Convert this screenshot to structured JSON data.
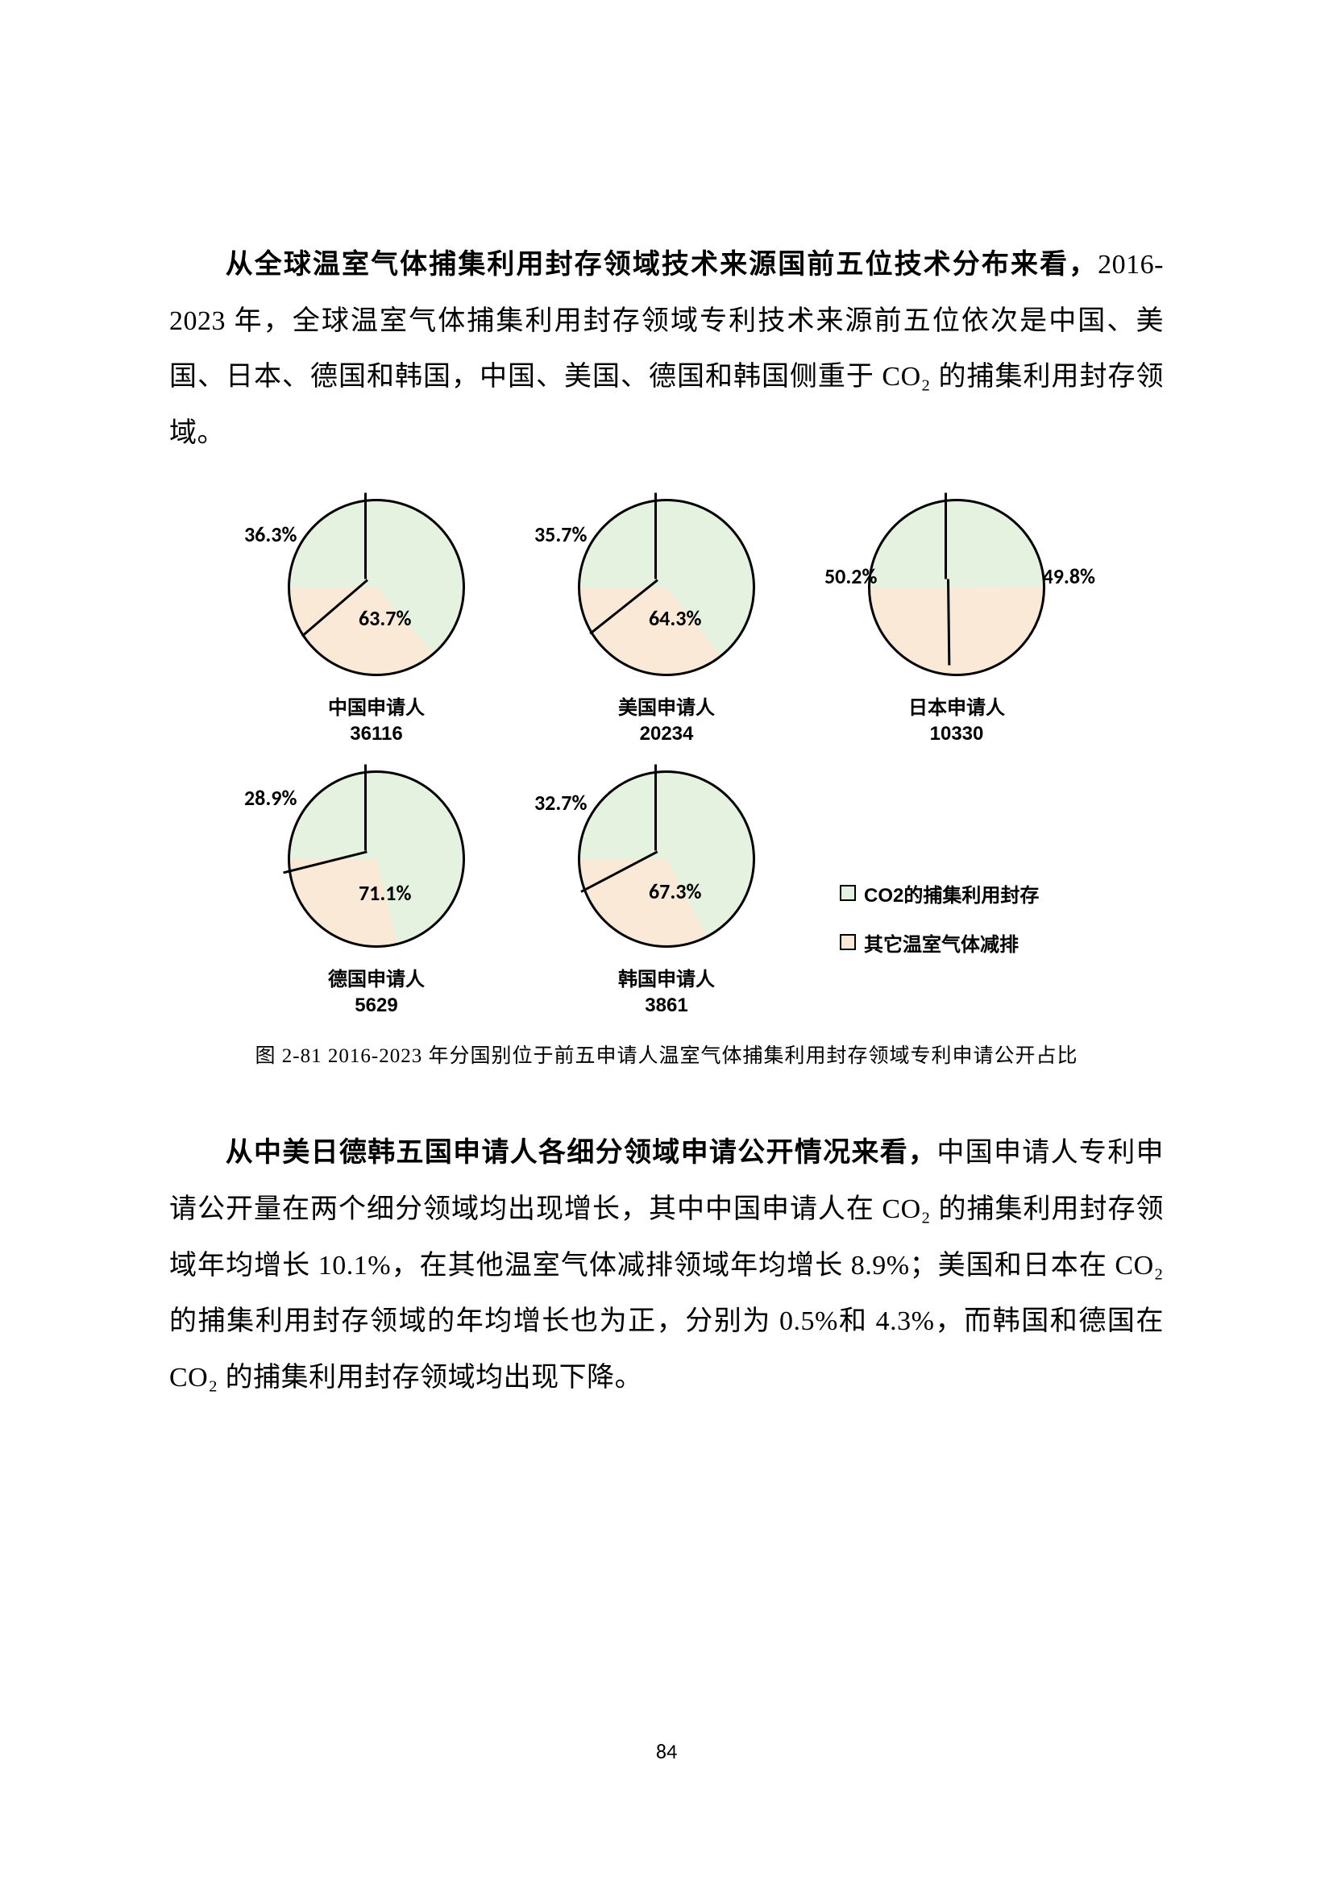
{
  "paragraph1": {
    "bold_lead": "从全球温室气体捕集利用封存领域技术来源国前五位技术分布来看，",
    "rest": "2016-2023 年，全球温室气体捕集利用封存领域专利技术来源前五位依次是中国、美国、日本、德国和韩国，中国、美国、德国和韩国侧重于 CO₂ 的捕集利用封存领域。"
  },
  "figure": {
    "caption": "图 2-81 2016-2023 年分国别位于前五申请人温室气体捕集利用封存领域专利申请公开占比",
    "colors": {
      "primary": "#e4f2df",
      "secondary": "#fbe9d8",
      "stroke": "#000000"
    },
    "legend": [
      {
        "label": "CO2的捕集利用封存",
        "swatch": "#e4f2df"
      },
      {
        "label": "其它温室气体减排",
        "swatch": "#fbe9d8"
      }
    ],
    "pies": [
      {
        "name": "中国申请人",
        "count": "36116",
        "primary_pct": 63.7,
        "secondary_pct": 36.3,
        "primary_label": "63.7%",
        "secondary_label": "36.3%"
      },
      {
        "name": "美国申请人",
        "count": "20234",
        "primary_pct": 64.3,
        "secondary_pct": 35.7,
        "primary_label": "64.3%",
        "secondary_label": "35.7%"
      },
      {
        "name": "日本申请人",
        "count": "10330",
        "primary_pct": 49.8,
        "secondary_pct": 50.2,
        "primary_label": "49.8%",
        "secondary_label": "50.2%"
      },
      {
        "name": "德国申请人",
        "count": "5629",
        "primary_pct": 71.1,
        "secondary_pct": 28.9,
        "primary_label": "71.1%",
        "secondary_label": "28.9%"
      },
      {
        "name": "韩国申请人",
        "count": "3861",
        "primary_pct": 67.3,
        "secondary_pct": 32.7,
        "primary_label": "67.3%",
        "secondary_label": "32.7%"
      }
    ]
  },
  "paragraph2": {
    "bold_lead": "从中美日德韩五国申请人各细分领域申请公开情况来看，",
    "rest": "中国申请人专利申请公开量在两个细分领域均出现增长，其中中国申请人在 CO₂ 的捕集利用封存领域年均增长 10.1%，在其他温室气体减排领域年均增长 8.9%；美国和日本在 CO₂ 的捕集利用封存领域的年均增长也为正，分别为 0.5%和 4.3%，而韩国和德国在 CO₂ 的捕集利用封存领域均出现下降。"
  },
  "page_number": "84"
}
